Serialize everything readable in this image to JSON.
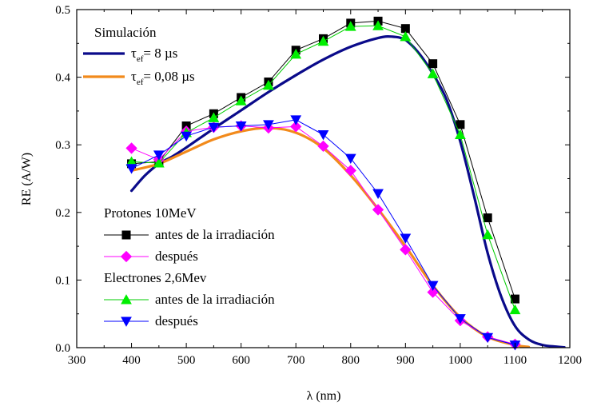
{
  "chart_data": {
    "type": "line",
    "xlabel": "λ (nm)",
    "ylabel": "RE (A/W)",
    "xlim": [
      300,
      1200
    ],
    "ylim": [
      0.0,
      0.5
    ],
    "xticks": [
      "300",
      "400",
      "500",
      "600",
      "700",
      "800",
      "900",
      "1000",
      "1100",
      "1200"
    ],
    "yticks": [
      "0.0",
      "0.1",
      "0.2",
      "0.3",
      "0.4",
      "0.5"
    ],
    "grid": false,
    "legend_top": {
      "title": "Simulación",
      "entries": [
        {
          "prefix": "τ",
          "sub": "ef",
          "suffix": "= 8 µs"
        },
        {
          "prefix": "τ",
          "sub": "ef",
          "suffix": "= 0,08 µs"
        }
      ]
    },
    "legend_bottom": {
      "groups": [
        {
          "title": "Protones 10MeV",
          "entries": [
            "antes de la irradiación",
            "después"
          ]
        },
        {
          "title": "Electrones 2,6Mev",
          "entries": [
            "antes  de la irradiación",
            "después"
          ]
        }
      ]
    },
    "series": [
      {
        "name": "τef= 8 µs",
        "kind": "line",
        "color": "#0a0a8a",
        "x": [
          400,
          425,
          450,
          475,
          500,
          550,
          600,
          650,
          700,
          750,
          800,
          850,
          875,
          900,
          925,
          950,
          975,
          1000,
          1025,
          1050,
          1075,
          1100,
          1125,
          1150,
          1175,
          1190
        ],
        "y": [
          0.232,
          0.255,
          0.272,
          0.283,
          0.296,
          0.324,
          0.351,
          0.378,
          0.403,
          0.426,
          0.445,
          0.458,
          0.46,
          0.455,
          0.435,
          0.405,
          0.367,
          0.305,
          0.225,
          0.14,
          0.075,
          0.032,
          0.012,
          0.004,
          0.0015,
          0.0005
        ]
      },
      {
        "name": "τef= 0,08 µs",
        "kind": "line",
        "color": "#f28a1b",
        "x": [
          400,
          450,
          500,
          550,
          600,
          650,
          700,
          750,
          800,
          850,
          900,
          950,
          1000,
          1050,
          1100,
          1125
        ],
        "y": [
          0.262,
          0.272,
          0.29,
          0.308,
          0.32,
          0.325,
          0.318,
          0.295,
          0.255,
          0.205,
          0.15,
          0.092,
          0.045,
          0.016,
          0.004,
          0.001
        ]
      },
      {
        "name": "antes de la irradiación",
        "kind": "marker",
        "marker": "square",
        "color": "#000000",
        "line_color": "#000000",
        "x": [
          400,
          450,
          500,
          550,
          600,
          650,
          700,
          750,
          800,
          850,
          900,
          950,
          1000,
          1050,
          1100
        ],
        "y": [
          0.272,
          0.275,
          0.328,
          0.346,
          0.37,
          0.393,
          0.44,
          0.457,
          0.48,
          0.483,
          0.472,
          0.42,
          0.33,
          0.192,
          0.072
        ]
      },
      {
        "name": "después",
        "kind": "marker",
        "marker": "diamond",
        "color": "#ff00ff",
        "line_color": "#ff00ff",
        "x": [
          400,
          450,
          500,
          550,
          600,
          650,
          700,
          750,
          800,
          850,
          900,
          950,
          1000,
          1050,
          1100
        ],
        "y": [
          0.295,
          0.278,
          0.32,
          0.326,
          0.328,
          0.325,
          0.327,
          0.298,
          0.262,
          0.204,
          0.145,
          0.082,
          0.04,
          0.016,
          0.005
        ]
      },
      {
        "name": "antes  de la irradiación",
        "kind": "marker",
        "marker": "triangle-up",
        "color": "#00ee00",
        "line_color": "#00cc00",
        "x": [
          400,
          450,
          500,
          550,
          600,
          650,
          700,
          750,
          800,
          850,
          900,
          950,
          1000,
          1050,
          1100
        ],
        "y": [
          0.275,
          0.273,
          0.318,
          0.34,
          0.365,
          0.388,
          0.434,
          0.453,
          0.475,
          0.476,
          0.46,
          0.405,
          0.315,
          0.167,
          0.056
        ]
      },
      {
        "name": "después",
        "kind": "marker",
        "marker": "triangle-down",
        "color": "#0000ff",
        "line_color": "#0000ff",
        "x": [
          400,
          450,
          500,
          550,
          600,
          650,
          700,
          750,
          800,
          850,
          900,
          950,
          1000,
          1050,
          1100
        ],
        "y": [
          0.265,
          0.285,
          0.313,
          0.326,
          0.328,
          0.33,
          0.337,
          0.315,
          0.28,
          0.228,
          0.162,
          0.092,
          0.043,
          0.015,
          0.004
        ]
      }
    ]
  }
}
